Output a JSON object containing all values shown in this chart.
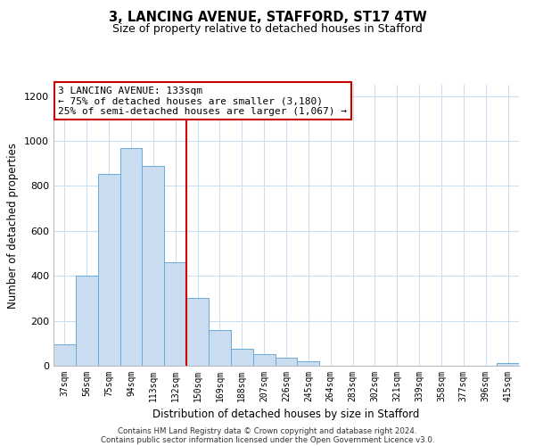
{
  "title1": "3, LANCING AVENUE, STAFFORD, ST17 4TW",
  "title2": "Size of property relative to detached houses in Stafford",
  "xlabel": "Distribution of detached houses by size in Stafford",
  "ylabel": "Number of detached properties",
  "bar_labels": [
    "37sqm",
    "56sqm",
    "75sqm",
    "94sqm",
    "113sqm",
    "132sqm",
    "150sqm",
    "169sqm",
    "188sqm",
    "207sqm",
    "226sqm",
    "245sqm",
    "264sqm",
    "283sqm",
    "302sqm",
    "321sqm",
    "339sqm",
    "358sqm",
    "377sqm",
    "396sqm",
    "415sqm"
  ],
  "bar_values": [
    95,
    400,
    855,
    970,
    890,
    460,
    300,
    160,
    75,
    52,
    35,
    20,
    0,
    0,
    0,
    0,
    0,
    0,
    0,
    0,
    10
  ],
  "bar_color": "#c9dcf0",
  "bar_edge_color": "#6aaad4",
  "vline_color": "#cc0000",
  "ylim": [
    0,
    1250
  ],
  "yticks": [
    0,
    200,
    400,
    600,
    800,
    1000,
    1200
  ],
  "annotation_title": "3 LANCING AVENUE: 133sqm",
  "annotation_line1": "← 75% of detached houses are smaller (3,180)",
  "annotation_line2": "25% of semi-detached houses are larger (1,067) →",
  "annotation_box_color": "#ffffff",
  "annotation_box_edge": "#cc0000",
  "footer1": "Contains HM Land Registry data © Crown copyright and database right 2024.",
  "footer2": "Contains public sector information licensed under the Open Government Licence v3.0.",
  "background_color": "#ffffff",
  "grid_color": "#ccdff0"
}
